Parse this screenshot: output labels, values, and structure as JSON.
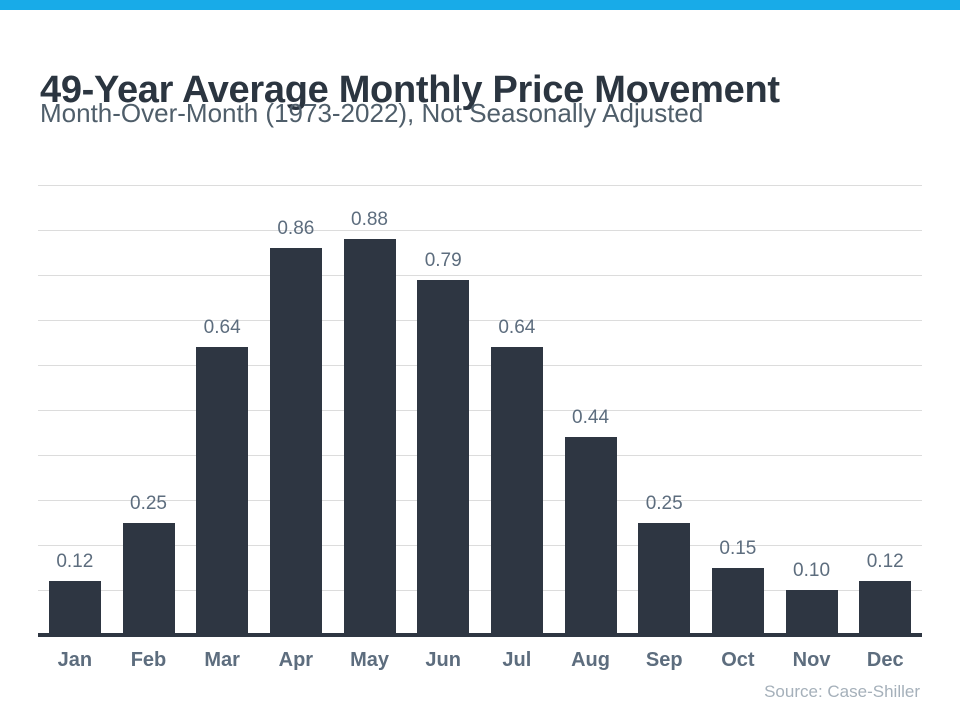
{
  "page": {
    "accent_color": "#18abe8",
    "background_color": "#ffffff"
  },
  "header": {
    "title": "49-Year Average Monthly Price Movement",
    "subtitle": "Month-Over-Month (1973-2022), Not Seasonally Adjusted"
  },
  "chart_data": {
    "type": "bar",
    "title": "49-Year Average Monthly Price Movement",
    "subtitle": "Month-Over-Month (1973-2022), Not Seasonally Adjusted",
    "categories": [
      "Jan",
      "Feb",
      "Mar",
      "Apr",
      "May",
      "Jun",
      "Jul",
      "Aug",
      "Sep",
      "Oct",
      "Nov",
      "Dec"
    ],
    "values": [
      0.12,
      0.25,
      0.64,
      0.86,
      0.88,
      0.79,
      0.64,
      0.44,
      0.25,
      0.15,
      0.1,
      0.12
    ],
    "value_labels": [
      "0.12",
      "0.25",
      "0.64",
      "0.86",
      "0.88",
      "0.79",
      "0.64",
      "0.44",
      "0.25",
      "0.15",
      "0.10",
      "0.12"
    ],
    "xlabel": "",
    "ylabel": "",
    "ylim": [
      0,
      1.0
    ],
    "gridline_step": 0.1,
    "grid": true,
    "legend": false,
    "bar_color": "#2e3642",
    "label_color": "#5d6d7e",
    "gridline_color": "#dcdcdc"
  },
  "footer": {
    "source": "Source: Case-Shiller"
  }
}
